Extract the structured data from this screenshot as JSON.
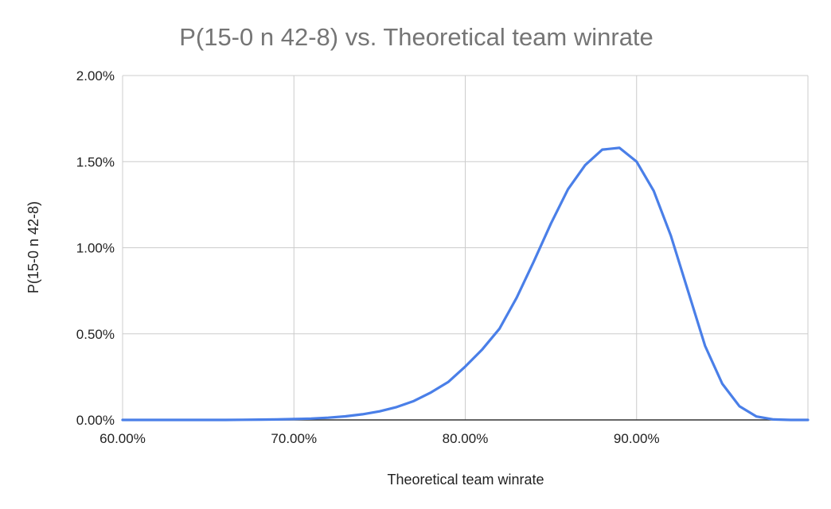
{
  "chart_data": {
    "type": "line",
    "title": "P(15-0 n 42-8) vs. Theoretical team winrate",
    "xlabel": "Theoretical team winrate",
    "ylabel": "P(15-0 n 42-8)",
    "xlim": [
      0.6,
      1.0
    ],
    "ylim": [
      0,
      0.02
    ],
    "x_ticks": [
      0.6,
      0.7,
      0.8,
      0.9
    ],
    "x_tick_labels": [
      "60.00%",
      "70.00%",
      "80.00%",
      "90.00%"
    ],
    "y_ticks": [
      0,
      0.005,
      0.01,
      0.015,
      0.02
    ],
    "y_tick_labels": [
      "0.00%",
      "0.50%",
      "1.00%",
      "1.50%",
      "2.00%"
    ],
    "grid": true,
    "legend": "none",
    "colors": {
      "line": "#4a7fe8",
      "grid": "#cccccc",
      "baseline": "#333333",
      "title": "#757575",
      "text": "#222222"
    },
    "series": [
      {
        "x": [
          0.6,
          0.61,
          0.62,
          0.63,
          0.64,
          0.65,
          0.66,
          0.67,
          0.68,
          0.69,
          0.7,
          0.71,
          0.72,
          0.73,
          0.74,
          0.75,
          0.76,
          0.77,
          0.78,
          0.79,
          0.8,
          0.81,
          0.82,
          0.83,
          0.84,
          0.85,
          0.86,
          0.87,
          0.88,
          0.89,
          0.9,
          0.91,
          0.92,
          0.93,
          0.94,
          0.95,
          0.96,
          0.97,
          0.98,
          0.99,
          1.0
        ],
        "values": [
          0.0,
          0.0,
          0.0,
          0.0,
          0.0,
          0.0,
          0.0,
          1e-05,
          2e-05,
          3e-05,
          5e-05,
          8e-05,
          0.00013,
          0.00021,
          0.00033,
          0.0005,
          0.00075,
          0.0011,
          0.0016,
          0.0022,
          0.0031,
          0.0041,
          0.0053,
          0.0071,
          0.0092,
          0.0114,
          0.0134,
          0.0148,
          0.0157,
          0.0158,
          0.015,
          0.0133,
          0.0107,
          0.0075,
          0.0043,
          0.0021,
          0.0008,
          0.0002,
          3e-05,
          0.0,
          0.0
        ]
      }
    ]
  }
}
